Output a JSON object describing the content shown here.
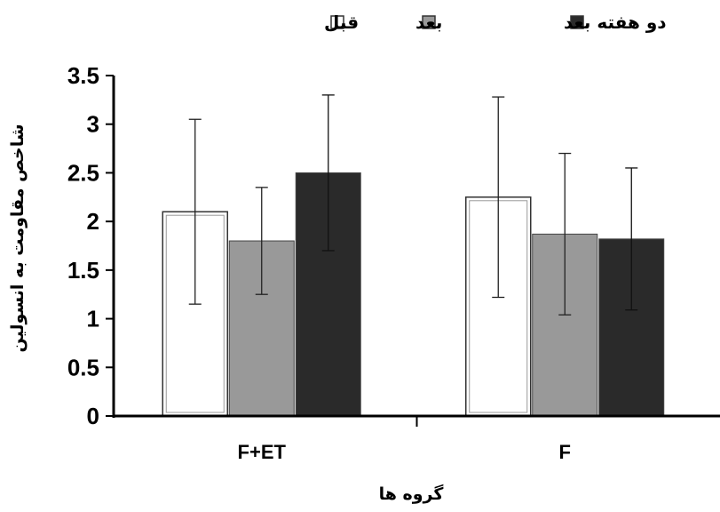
{
  "chart_data": {
    "type": "bar",
    "categories": [
      "F+ET",
      "F"
    ],
    "series": [
      {
        "name": "قبل",
        "values": [
          2.1,
          2.25
        ],
        "errors": [
          0.95,
          1.03
        ],
        "color": "#ffffff"
      },
      {
        "name": "بعد",
        "values": [
          1.8,
          1.87
        ],
        "errors": [
          0.55,
          0.83
        ],
        "color": "#999999"
      },
      {
        "name": "دو هفته بعد",
        "values": [
          2.5,
          1.82
        ],
        "errors": [
          0.8,
          0.73
        ],
        "color": "#2a2a2a"
      }
    ],
    "xlabel": "گروه ها",
    "ylabel": "شاخص مقاومت به انسولین",
    "ylim": [
      0,
      3.5
    ],
    "yticks": [
      "0",
      "0.5",
      "1",
      "1.5",
      "2",
      "2.5",
      "3",
      "3.5"
    ],
    "legend_position": "top"
  }
}
